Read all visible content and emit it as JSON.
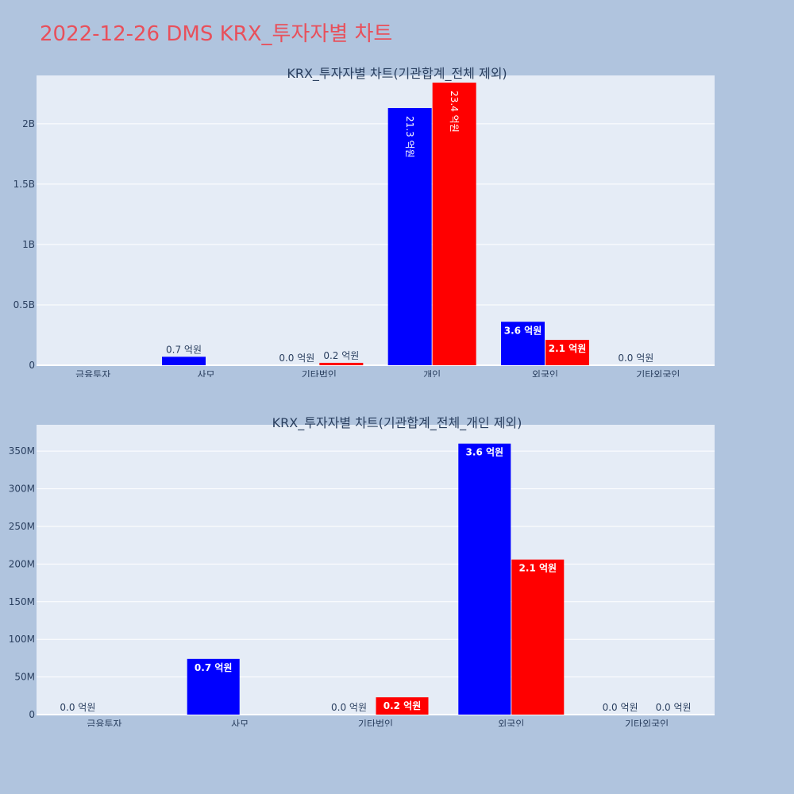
{
  "title": "2022-12-26 DMS KRX_투자자별 차트",
  "colors": {
    "page_bg": "#b0c4de",
    "plot_bg": "#e5ecf6",
    "grid": "#ffffff",
    "title": "#e8505b",
    "axis_text": "#2a3f5f",
    "series_blue": "#0000ff",
    "series_red": "#ff0000"
  },
  "chart_data": [
    {
      "type": "bar",
      "title": "KRX_투자자별 차트(기관합계_전체 제외)",
      "categories": [
        "금융투자",
        "사모",
        "기타법인",
        "개인",
        "외국인",
        "기타외국인"
      ],
      "ylim": [
        0,
        2400000000
      ],
      "yticks": [
        0,
        500000000,
        1000000000,
        1500000000,
        2000000000
      ],
      "ytick_labels": [
        "0",
        "0.5B",
        "1B",
        "1.5B",
        "2B"
      ],
      "grid": true,
      "series": [
        {
          "color": "#0000ff",
          "values": [
            null,
            70000000,
            0,
            2130000000,
            360000000,
            0
          ],
          "labels": [
            "",
            "0.7 억원",
            "0.0 억원",
            "21.3 억원",
            "3.6 억원",
            "0.0 억원"
          ],
          "label_positions": [
            "",
            "outside",
            "outside",
            "inside-vertical",
            "inside",
            "outside"
          ]
        },
        {
          "color": "#ff0000",
          "values": [
            null,
            null,
            20000000,
            2340000000,
            210000000,
            null
          ],
          "labels": [
            "",
            "",
            "0.2 억원",
            "23.4 억원",
            "2.1 억원",
            ""
          ],
          "label_positions": [
            "",
            "",
            "outside",
            "inside-vertical",
            "inside",
            ""
          ]
        }
      ]
    },
    {
      "type": "bar",
      "title": "KRX_투자자별 차트(기관합계_전체_개인 제외)",
      "categories": [
        "금융투자",
        "사모",
        "기타법인",
        "외국인",
        "기타외국인"
      ],
      "ylim": [
        0,
        385000000
      ],
      "yticks": [
        0,
        50000000,
        100000000,
        150000000,
        200000000,
        250000000,
        300000000,
        350000000
      ],
      "ytick_labels": [
        "0",
        "50M",
        "100M",
        "150M",
        "200M",
        "250M",
        "300M",
        "350M"
      ],
      "grid": true,
      "series": [
        {
          "color": "#0000ff",
          "values": [
            0,
            74000000,
            0,
            360000000,
            0
          ],
          "labels": [
            "0.0 억원",
            "0.7 억원",
            "0.0 억원",
            "3.6 억원",
            "0.0 억원"
          ],
          "label_positions": [
            "outside",
            "inside",
            "outside",
            "inside",
            "outside"
          ]
        },
        {
          "color": "#ff0000",
          "values": [
            null,
            null,
            23000000,
            206000000,
            0
          ],
          "labels": [
            "",
            "",
            "0.2 억원",
            "2.1 억원",
            "0.0 억원"
          ],
          "label_positions": [
            "",
            "",
            "inside",
            "inside",
            "outside"
          ]
        }
      ]
    }
  ]
}
